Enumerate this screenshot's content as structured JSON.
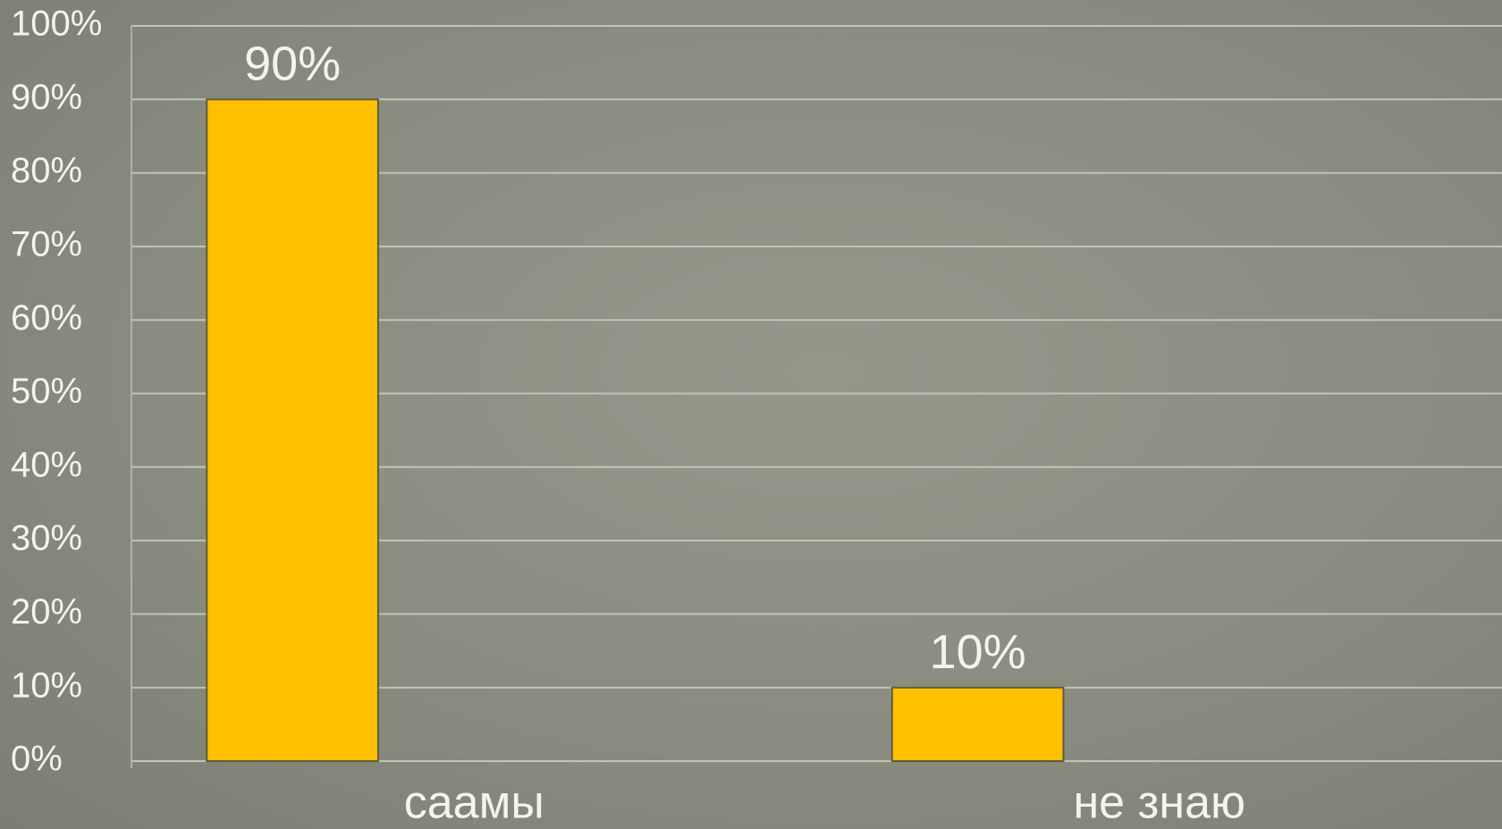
{
  "chart_data": {
    "type": "bar",
    "categories": [
      "саамы",
      "не знаю"
    ],
    "values": [
      90,
      10
    ],
    "value_labels": [
      "90%",
      "10%"
    ],
    "color": "#ffc000",
    "ylim": [
      0,
      100
    ],
    "yticks": [
      {
        "value": 0,
        "label": "0%"
      },
      {
        "value": 10,
        "label": "10%"
      },
      {
        "value": 20,
        "label": "20%"
      },
      {
        "value": 30,
        "label": "30%"
      },
      {
        "value": 40,
        "label": "40%"
      },
      {
        "value": 50,
        "label": "50%"
      },
      {
        "value": 60,
        "label": "60%"
      },
      {
        "value": 70,
        "label": "70%"
      },
      {
        "value": 80,
        "label": "80%"
      },
      {
        "value": 90,
        "label": "90%"
      },
      {
        "value": 100,
        "label": "100%"
      }
    ],
    "grid": true
  }
}
